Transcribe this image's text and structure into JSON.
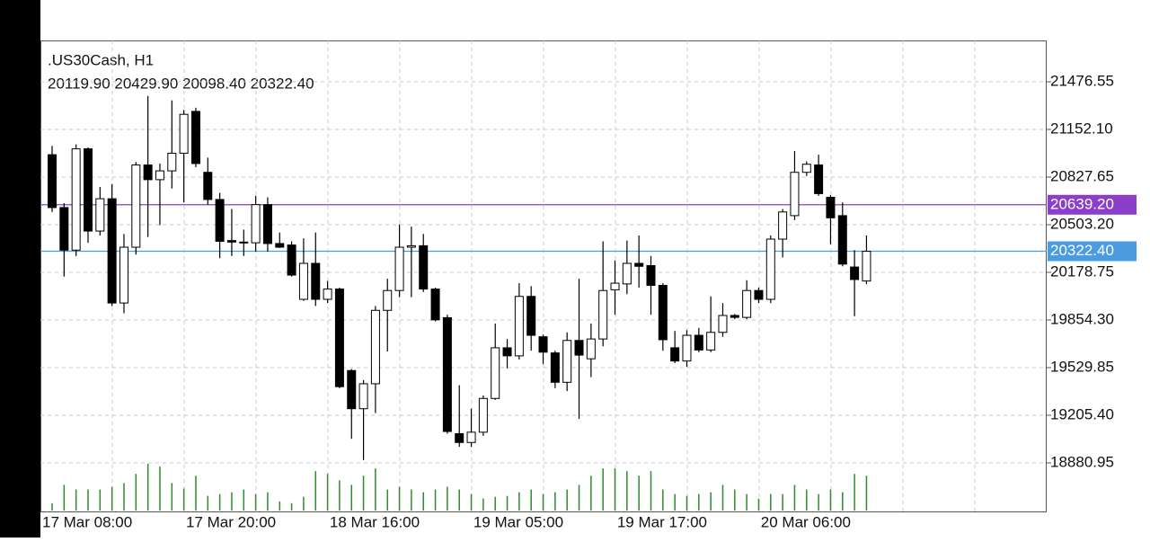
{
  "chart_data": {
    "type": "candlestick",
    "title": ".US30Cash, H1",
    "ohlc_label": "20119.90 20429.90 20098.40 20322.40",
    "categories": [
      "17 Mar 08:00",
      null,
      null,
      null,
      null,
      null,
      null,
      null,
      null,
      null,
      null,
      null,
      "17 Mar 20:00",
      null,
      null,
      null,
      null,
      null,
      null,
      null,
      null,
      null,
      null,
      null,
      "18 Mar 16:00",
      null,
      null,
      null,
      null,
      null,
      null,
      null,
      null,
      null,
      null,
      null,
      "19 Mar 05:00",
      null,
      null,
      null,
      null,
      null,
      null,
      null,
      null,
      null,
      null,
      null,
      "19 Mar 17:00",
      null,
      null,
      null,
      null,
      null,
      null,
      null,
      null,
      null,
      null,
      null,
      "20 Mar 06:00",
      null,
      null,
      null,
      null,
      null,
      null,
      null,
      null
    ],
    "open": [
      20980,
      20620,
      20330,
      21020,
      20460,
      20680,
      19970,
      20350,
      20910,
      20810,
      20870,
      20990,
      21275,
      20860,
      20675,
      20395,
      20385,
      20380,
      20640,
      20375,
      20365,
      19995,
      20240,
      19995,
      20065,
      19510,
      19250,
      19420,
      19920,
      20055,
      20350,
      20360,
      20065,
      19870,
      19080,
      19020,
      19090,
      19320,
      19665,
      19610,
      20015,
      19740,
      19630,
      19430,
      19715,
      19590,
      19725,
      20060,
      20100,
      20240,
      20225,
      20090,
      19665,
      19575,
      19750,
      19650,
      19770,
      19885,
      19872,
      20055,
      19995,
      20405,
      20565,
      20860,
      20910,
      20690,
      20565,
      20215,
      20119.9
    ],
    "high": [
      21040,
      20650,
      21050,
      21030,
      20760,
      20780,
      20440,
      20930,
      21380,
      20920,
      21350,
      21285,
      21300,
      20960,
      20720,
      20610,
      20470,
      20700,
      20690,
      20450,
      20390,
      20410,
      20450,
      20120,
      20075,
      19520,
      19445,
      19950,
      20135,
      20505,
      20490,
      20440,
      20075,
      19890,
      19410,
      19250,
      19340,
      19830,
      19725,
      20105,
      20085,
      19755,
      19645,
      19770,
      20135,
      19830,
      20390,
      20260,
      20395,
      20430,
      20290,
      20105,
      19780,
      19785,
      19800,
      20015,
      19970,
      19895,
      20125,
      20075,
      20430,
      20610,
      21005,
      20935,
      20980,
      20705,
      20655,
      20330,
      20429.9
    ],
    "low": [
      20590,
      20150,
      20290,
      20380,
      20430,
      19950,
      19900,
      20300,
      20420,
      20500,
      20750,
      20655,
      20895,
      20640,
      20275,
      20290,
      20290,
      20320,
      20320,
      20345,
      20150,
      19985,
      19950,
      19970,
      19390,
      19045,
      18900,
      19220,
      19640,
      20010,
      20010,
      20045,
      19845,
      19080,
      18990,
      18990,
      19065,
      19310,
      19525,
      19585,
      19645,
      19555,
      19390,
      19370,
      19180,
      19465,
      19675,
      19890,
      20030,
      20075,
      19890,
      19645,
      19560,
      19535,
      19635,
      19635,
      19740,
      19860,
      19860,
      19970,
      19970,
      20280,
      20535,
      20835,
      20700,
      20370,
      20220,
      19880,
      20098.4
    ],
    "close": [
      20620,
      20330,
      21020,
      20460,
      20680,
      19970,
      20350,
      20910,
      20810,
      20870,
      20990,
      21255,
      20920,
      20675,
      20390,
      20385,
      20380,
      20640,
      20375,
      20350,
      20160,
      20240,
      19995,
      20065,
      19400,
      19250,
      19420,
      19920,
      20055,
      20350,
      20360,
      20065,
      19855,
      19095,
      19020,
      19090,
      19320,
      19665,
      19610,
      20015,
      19750,
      19635,
      19430,
      19715,
      19615,
      19725,
      20055,
      20105,
      20240,
      20220,
      20090,
      19720,
      19575,
      19750,
      19650,
      19770,
      19885,
      19872,
      20055,
      19995,
      20405,
      20590,
      20860,
      20915,
      20715,
      20550,
      20235,
      20130,
      20322.4
    ],
    "volumes": [
      8,
      28,
      23,
      23,
      23,
      26,
      30,
      40,
      51,
      48,
      30,
      24,
      38,
      16,
      18,
      20,
      23,
      18,
      20,
      10,
      8,
      15,
      43,
      40,
      33,
      28,
      38,
      46,
      23,
      26,
      23,
      20,
      23,
      26,
      23,
      18,
      13,
      15,
      16,
      20,
      23,
      18,
      20,
      23,
      28,
      38,
      46,
      46,
      43,
      38,
      43,
      23,
      18,
      16,
      18,
      20,
      28,
      23,
      18,
      13,
      18,
      18,
      28,
      23,
      18,
      23,
      20,
      40,
      38
    ],
    "bull_color": "#ffffff",
    "bear_color": "#000000",
    "volume_color": "#2e8b2e",
    "ylim": [
      18544.2,
      21758.2
    ],
    "yticks": [
      18880.95,
      {
        "value": 19205.4,
        "label": "19205.40"
      },
      19529.85,
      {
        "value": 19854.3,
        "label": "19854.30"
      },
      20178.75,
      {
        "value": 20503.2,
        "label": "20503.20"
      },
      20827.65,
      {
        "value": 21152.1,
        "label": "21152.10"
      },
      21476.55
    ],
    "hlines": [
      {
        "value": 20639.2,
        "label": "20639.20",
        "color": "#8b3fc8"
      },
      {
        "value": 20322.4,
        "label": "20322.40",
        "color": "#4a9be0"
      }
    ],
    "grid": true
  }
}
